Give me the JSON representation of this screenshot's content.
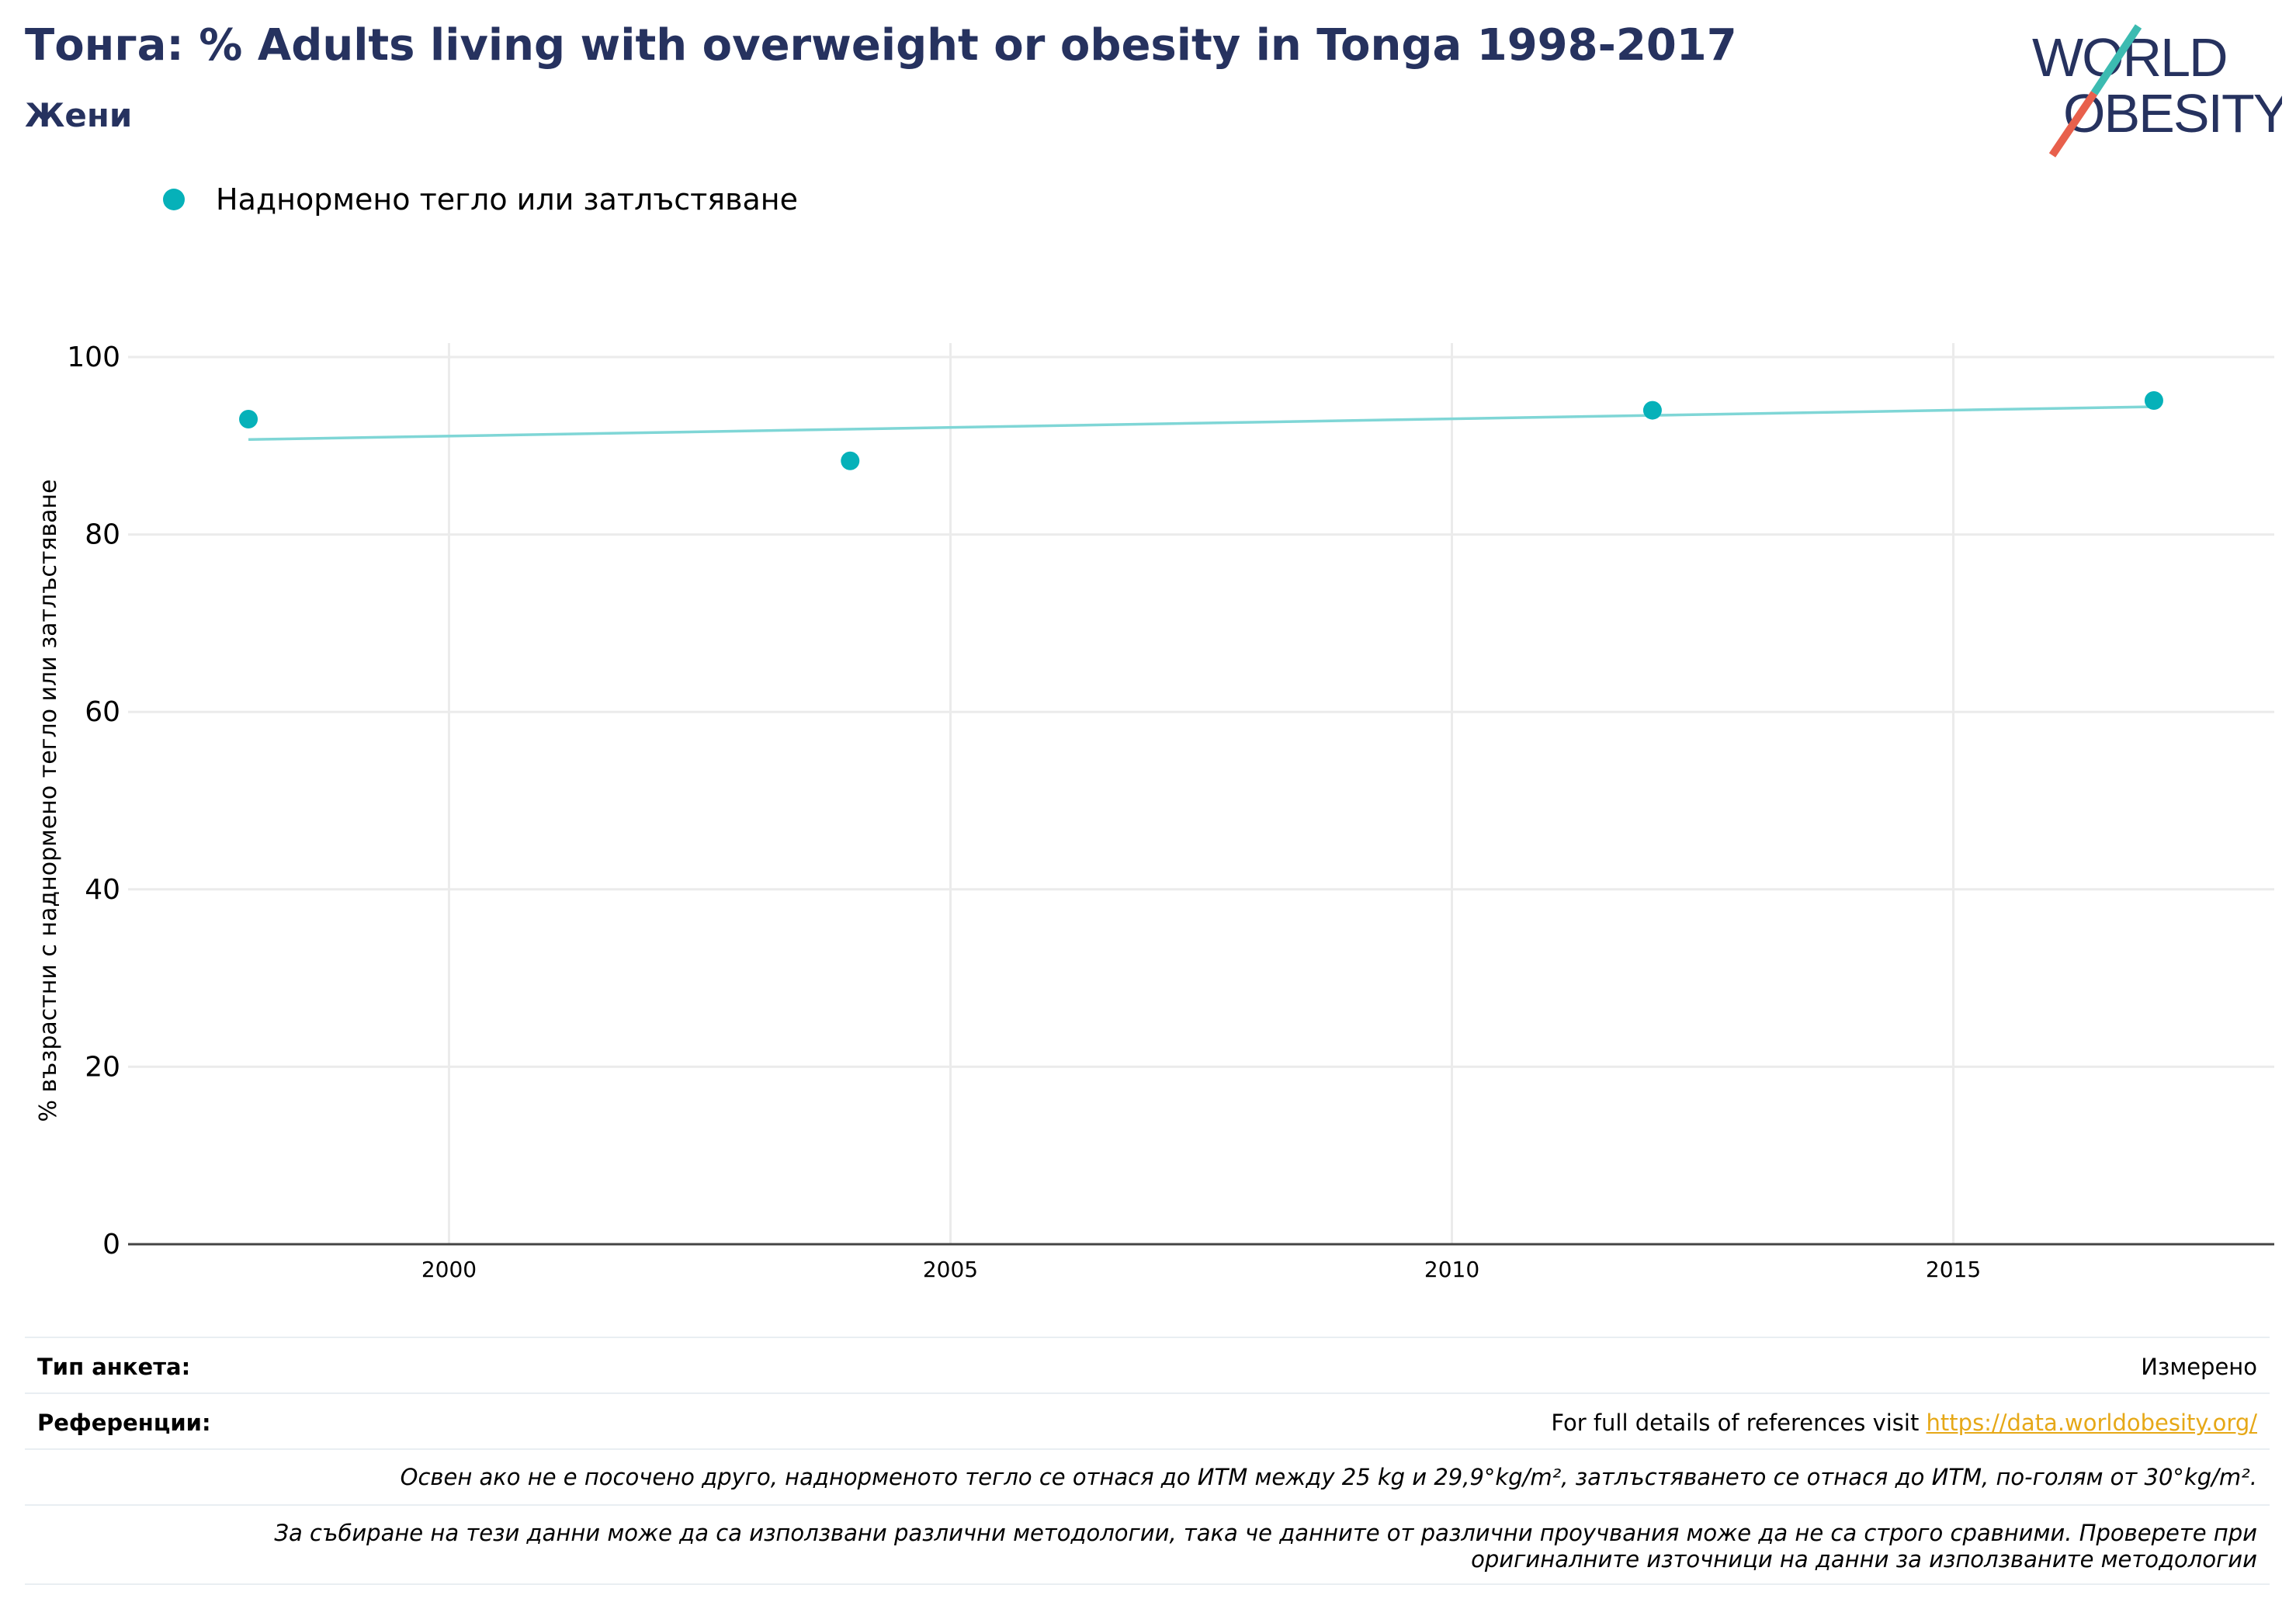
{
  "header": {
    "title": "Тонга: % Adults living with overweight or obesity in Tonga 1998-2017",
    "subtitle": "Жени"
  },
  "logo": {
    "line1": "WORLD",
    "line2": "OBESITY"
  },
  "colors": {
    "title": "#26325f",
    "series": "#06b1b9",
    "trend": "#7fd6d6",
    "link": "#e6a817",
    "logo_teal": "#3cbbb1",
    "logo_red": "#e8604c"
  },
  "chart_data": {
    "type": "scatter",
    "series": [
      {
        "name": "Наднормено тегло или затлъстяване",
        "x": [
          1998,
          2004,
          2012,
          2017
        ],
        "values": [
          93.0,
          88.3,
          94.0,
          95.1
        ]
      }
    ],
    "trendline": {
      "x": [
        1998,
        2017
      ],
      "values": [
        90.7,
        94.4
      ]
    },
    "ylabel": "% възрастни с наднормено тегло или затлъстяване",
    "xlabel": "",
    "ylim": [
      0,
      100
    ],
    "xlim": [
      1996.8,
      2018.2
    ],
    "yticks": [
      0,
      20,
      40,
      60,
      80,
      100
    ],
    "xticks": [
      2000,
      2005,
      2010,
      2015
    ],
    "grid": true,
    "legend_position": "top-left"
  },
  "footer": {
    "survey_label": "Тип анкета:",
    "survey_value": "Измерено",
    "references_label": "Референции:",
    "references_text": "For full details of references visit ",
    "references_link": "https://data.worldobesity.org/",
    "note1": "Освен ако не е посочено друго, наднорменото тегло се отнася до ИТМ между 25 kg и 29,9°kg/m², затлъстяването се отнася до ИТМ, по-голям от 30°kg/m².",
    "note2_line1": "За събиране на тези данни може да са използвани различни методологии, така че данните от различни проучвания може да не са строго сравними. Проверете при",
    "note2_line2": "оригиналните източници на данни за използваните методологии"
  }
}
